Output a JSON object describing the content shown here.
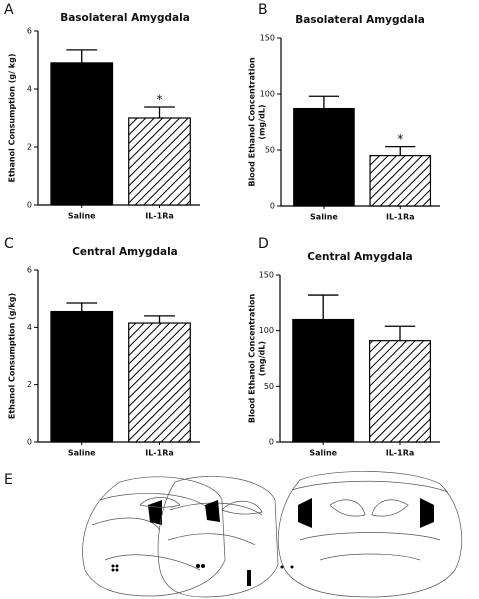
{
  "chart_data": [
    {
      "type": "bar",
      "panel": "A",
      "title": "Basolateral  Amygdala",
      "ylabel": [
        "Ethanol Consumption (g/ kg)"
      ],
      "categories": [
        "Saline",
        "IL-1Ra"
      ],
      "values": [
        4.9,
        3.0
      ],
      "errors": [
        0.45,
        0.38
      ],
      "fills": [
        "black",
        "hatch"
      ],
      "significance": [
        null,
        "*"
      ],
      "ylim": [
        0,
        6
      ],
      "yticks": [
        0,
        2,
        4,
        6
      ]
    },
    {
      "type": "bar",
      "panel": "B",
      "title": "Basolateral  Amygdala",
      "ylabel": [
        "Blood  Ethanol  Concentration",
        "(mg/dL)"
      ],
      "categories": [
        "Saline",
        "IL-1Ra"
      ],
      "values": [
        87,
        45
      ],
      "errors": [
        11,
        8
      ],
      "fills": [
        "black",
        "hatch"
      ],
      "significance": [
        null,
        "*"
      ],
      "ylim": [
        0,
        150
      ],
      "yticks": [
        0,
        50,
        100,
        150
      ]
    },
    {
      "type": "bar",
      "panel": "C",
      "title": "Central  Amygdala",
      "ylabel": [
        "Ethanol Consumption (g/kg)"
      ],
      "categories": [
        "Saline",
        "IL-1Ra"
      ],
      "values": [
        4.55,
        4.15
      ],
      "errors": [
        0.3,
        0.25
      ],
      "fills": [
        "black",
        "hatch"
      ],
      "significance": [
        null,
        null
      ],
      "ylim": [
        0,
        6
      ],
      "yticks": [
        0,
        2,
        4,
        6
      ]
    },
    {
      "type": "bar",
      "panel": "D",
      "title": "Central  Amygdala",
      "ylabel": [
        "Blood  Ethanol  Concentration",
        "(mg/dL)"
      ],
      "categories": [
        "Saline",
        "IL-1Ra"
      ],
      "values": [
        110,
        91
      ],
      "errors": [
        22,
        13
      ],
      "fills": [
        "black",
        "hatch"
      ],
      "significance": [
        null,
        null
      ],
      "ylim": [
        0,
        150
      ],
      "yticks": [
        0,
        50,
        100,
        150
      ]
    }
  ],
  "figure_e": {
    "panel": "E"
  }
}
